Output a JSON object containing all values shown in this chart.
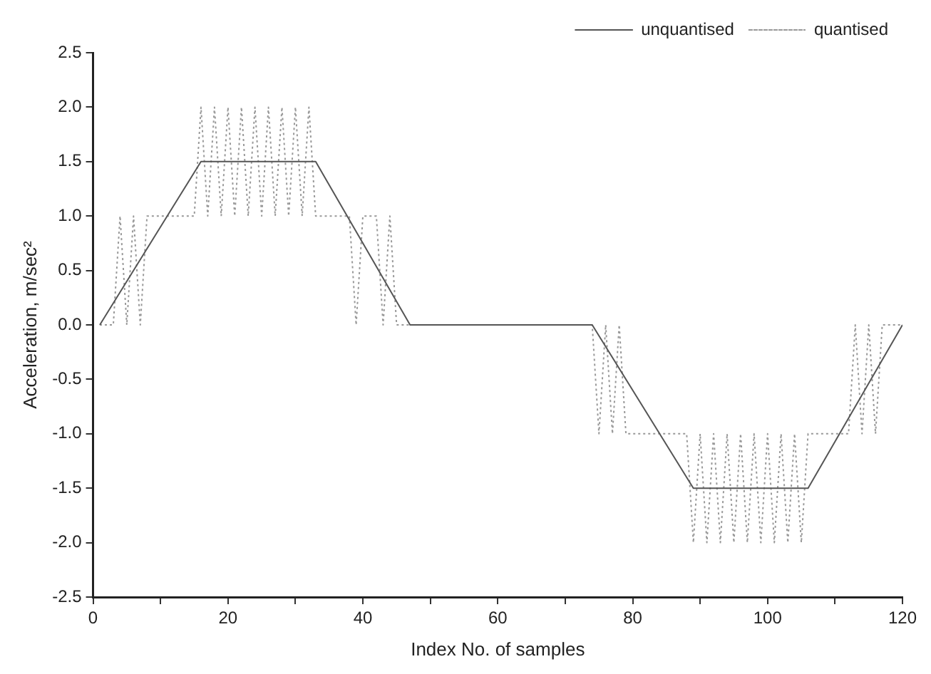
{
  "chart_data": {
    "type": "line",
    "xlabel": "Index No. of samples",
    "ylabel": "Acceleration, m/sec²",
    "xlim": [
      0,
      120
    ],
    "xticks": [
      0,
      {
        "value": 10,
        "label": null
      },
      20,
      {
        "value": 30,
        "label": null
      },
      40,
      {
        "value": 50,
        "label": null
      },
      60,
      {
        "value": 70,
        "label": null
      },
      80,
      {
        "value": 90,
        "label": null
      },
      100,
      {
        "value": 110,
        "label": null
      },
      120
    ],
    "ylim": [
      -2.5,
      2.5
    ],
    "yticks": [
      {
        "value": -2.5,
        "label": "-2.5"
      },
      {
        "value": -2,
        "label": "-2.0"
      },
      {
        "value": -1.5,
        "label": "-1.5"
      },
      {
        "value": -1,
        "label": "-1.0"
      },
      {
        "value": -0.5,
        "label": "-0.5"
      },
      {
        "value": 0,
        "label": "0.0"
      },
      {
        "value": 0.5,
        "label": "0.5"
      },
      {
        "value": 1,
        "label": "1.0"
      },
      {
        "value": 1.5,
        "label": "1.5"
      },
      {
        "value": 2,
        "label": "2.0"
      },
      {
        "value": 2.5,
        "label": "2.5"
      }
    ],
    "grid": false,
    "legend": "top right",
    "marker": "none",
    "series": [
      {
        "name": "unquantised",
        "color": "#555555",
        "line_style": "solid",
        "x": [
          1,
          16,
          33,
          47,
          74,
          89,
          106,
          120
        ],
        "values": [
          0,
          1.5,
          1.5,
          0,
          0,
          -1.5,
          -1.5,
          0
        ]
      },
      {
        "name": "quantised",
        "color": "#999999",
        "line_style": "dotted",
        "x": [
          1,
          2,
          3,
          4,
          5,
          6,
          7,
          8,
          9,
          10,
          11,
          12,
          13,
          14,
          15,
          16,
          17,
          18,
          19,
          20,
          21,
          22,
          23,
          24,
          25,
          26,
          27,
          28,
          29,
          30,
          31,
          32,
          33,
          34,
          35,
          36,
          37,
          38,
          39,
          40,
          41,
          42,
          43,
          44,
          45,
          46,
          47,
          48,
          49,
          50,
          51,
          52,
          53,
          54,
          55,
          56,
          57,
          58,
          59,
          60,
          61,
          62,
          63,
          64,
          65,
          66,
          67,
          68,
          69,
          70,
          71,
          72,
          73,
          74,
          75,
          76,
          77,
          78,
          79,
          80,
          81,
          82,
          83,
          84,
          85,
          86,
          87,
          88,
          89,
          90,
          91,
          92,
          93,
          94,
          95,
          96,
          97,
          98,
          99,
          100,
          101,
          102,
          103,
          104,
          105,
          106,
          107,
          108,
          109,
          110,
          111,
          112,
          113,
          114,
          115,
          116,
          117,
          118,
          119,
          120
        ],
        "values": [
          0,
          0,
          0,
          1,
          0,
          1,
          0,
          1,
          1,
          1,
          1,
          1,
          1,
          1,
          1,
          2,
          1,
          2,
          1,
          2,
          1,
          2,
          1,
          2,
          1,
          2,
          1,
          2,
          1,
          2,
          1,
          2,
          1,
          1,
          1,
          1,
          1,
          1,
          0,
          1,
          1,
          1,
          0,
          1,
          0,
          0,
          0,
          0,
          0,
          0,
          0,
          0,
          0,
          0,
          0,
          0,
          0,
          0,
          0,
          0,
          0,
          0,
          0,
          0,
          0,
          0,
          0,
          0,
          0,
          0,
          0,
          0,
          0,
          0,
          -1,
          0,
          -1,
          0,
          -1,
          -1,
          -1,
          -1,
          -1,
          -1,
          -1,
          -1,
          -1,
          -1,
          -2,
          -1,
          -2,
          -1,
          -2,
          -1,
          -2,
          -1,
          -2,
          -1,
          -2,
          -1,
          -2,
          -1,
          -2,
          -1,
          -2,
          -1,
          -1,
          -1,
          -1,
          -1,
          -1,
          -1,
          0,
          -1,
          0,
          -1,
          0,
          0,
          0,
          0
        ]
      }
    ]
  }
}
